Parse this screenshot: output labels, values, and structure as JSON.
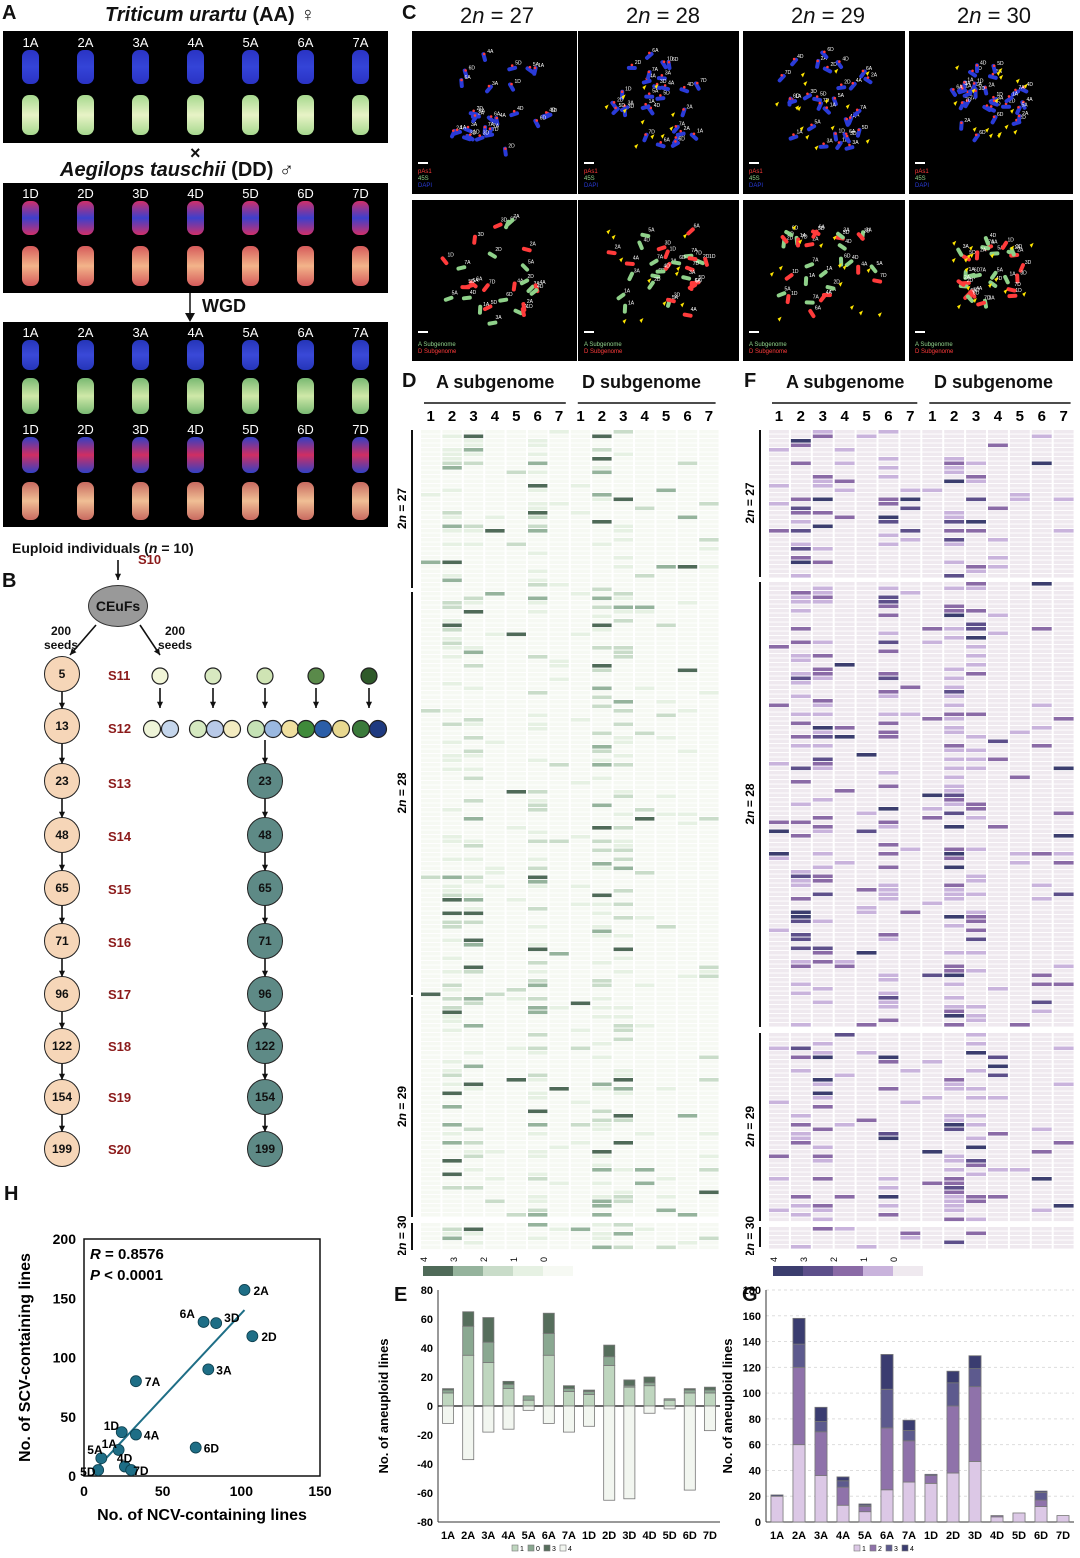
{
  "panel_labels": {
    "A": "A",
    "B": "B",
    "C": "C",
    "D": "D",
    "E": "E",
    "F": "F",
    "G": "G",
    "H": "H"
  },
  "panelA": {
    "species1": {
      "name": "Triticum urartu",
      "genome": "(AA)",
      "sex": "♀"
    },
    "cross": "×",
    "species2": {
      "name": "Aegilops tauschii",
      "genome": "(DD)",
      "sex": "♂"
    },
    "wgd": "WGD",
    "a_chromosomes": [
      "1A",
      "2A",
      "3A",
      "4A",
      "5A",
      "6A",
      "7A"
    ],
    "d_chromosomes": [
      "1D",
      "2D",
      "3D",
      "4D",
      "5D",
      "6D",
      "7D"
    ]
  },
  "panelB": {
    "title": "Euploid individuals",
    "n_label": "n",
    "n_value": "= 10)",
    "ceufs": "CEuFs",
    "seeds_left": "200\nseeds",
    "seeds_right": "200\nseeds",
    "left_counts": [
      "5",
      "13",
      "23",
      "48",
      "65",
      "71",
      "96",
      "122",
      "154",
      "199"
    ],
    "right_counts": [
      "23",
      "48",
      "65",
      "71",
      "96",
      "122",
      "154",
      "199"
    ],
    "generations": [
      "S10",
      "S11",
      "S12",
      "S13",
      "S14",
      "S15",
      "S16",
      "S17",
      "S18",
      "S19",
      "S20"
    ]
  },
  "panelC": {
    "columns": [
      "2n = 27",
      "2n = 28",
      "2n = 29",
      "2n = 30"
    ],
    "top_legend": [
      "pAs1",
      "45S",
      "DAPI"
    ],
    "bottom_legend": [
      "A Subgenome",
      "D Subgenome"
    ],
    "colors": {
      "a_green": "#8fd18a",
      "d_red": "#ff3b3b",
      "dapi": "#2a3bd8",
      "yellow": "#ffe600"
    }
  },
  "panelD": {
    "a_title": "A subgenome",
    "d_title": "D subgenome",
    "numbers": [
      "1",
      "2",
      "3",
      "4",
      "5",
      "6",
      "7"
    ],
    "rows": [
      "2n = 27",
      "2n = 28",
      "2n = 29",
      "2n = 30"
    ],
    "legend": [
      "4",
      "3",
      "2",
      "1",
      "0"
    ],
    "colors": [
      "#4f6a58",
      "#95b39c",
      "#c9dcc9",
      "#e6f1e3",
      "#f6f9f3"
    ]
  },
  "panelF": {
    "a_title": "A subgenome",
    "d_title": "D subgenome",
    "numbers": [
      "1",
      "2",
      "3",
      "4",
      "5",
      "6",
      "7"
    ],
    "rows": [
      "2n = 27",
      "2n = 28",
      "2n = 29",
      "2n = 30"
    ],
    "legend": [
      "4",
      "3",
      "2",
      "1",
      "0"
    ],
    "colors": [
      "#3b3d6e",
      "#5d4f8a",
      "#8a6aa6",
      "#c9b3dc",
      "#efe9ef"
    ]
  },
  "chart_data": [
    {
      "panel": "E",
      "type": "bar",
      "ylabel": "No. of aneuploid lines",
      "ylim": [
        -80,
        80
      ],
      "yticks": [
        -80,
        -60,
        -40,
        -20,
        0,
        20,
        40,
        60,
        80
      ],
      "categories": [
        "1A",
        "2A",
        "3A",
        "4A",
        "5A",
        "6A",
        "7A",
        "1D",
        "2D",
        "3D",
        "4D",
        "5D",
        "6D",
        "7D"
      ],
      "legend": [
        "1",
        "0",
        "3",
        "4"
      ],
      "series": [
        {
          "name": "1",
          "values": [
            9,
            35,
            30,
            12,
            4,
            35,
            10,
            8,
            28,
            13,
            14,
            4,
            9,
            9
          ]
        },
        {
          "name": "3",
          "values": [
            2,
            20,
            14,
            3,
            3,
            15,
            2,
            2,
            6,
            1,
            2,
            1,
            2,
            2
          ]
        },
        {
          "name": "4",
          "values": [
            1,
            10,
            17,
            2,
            0,
            14,
            2,
            1,
            8,
            4,
            4,
            0,
            1,
            2
          ]
        },
        {
          "name": "0",
          "values": [
            -12,
            -37,
            -18,
            -16,
            -3,
            -12,
            -18,
            -14,
            -65,
            -64,
            -5,
            -2,
            -58,
            -17
          ]
        }
      ]
    },
    {
      "panel": "G",
      "type": "bar",
      "ylabel": "No. of aneuploid lines",
      "ylim": [
        0,
        180
      ],
      "yticks": [
        0,
        20,
        40,
        60,
        80,
        100,
        120,
        140,
        160,
        180
      ],
      "categories": [
        "1A",
        "2A",
        "3A",
        "4A",
        "5A",
        "6A",
        "7A",
        "1D",
        "2D",
        "3D",
        "4D",
        "5D",
        "6D",
        "7D"
      ],
      "legend": [
        "1",
        "2",
        "3",
        "4"
      ],
      "series": [
        {
          "name": "1",
          "values": [
            20,
            60,
            36,
            13,
            8,
            25,
            31,
            30,
            38,
            47,
            4,
            7,
            12,
            5
          ]
        },
        {
          "name": "2",
          "values": [
            0,
            60,
            34,
            14,
            4,
            48,
            32,
            6,
            52,
            58,
            1,
            0,
            5,
            0
          ]
        },
        {
          "name": "3",
          "values": [
            0,
            18,
            8,
            5,
            1,
            30,
            8,
            1,
            18,
            14,
            0,
            0,
            6,
            0
          ]
        },
        {
          "name": "4",
          "values": [
            1,
            20,
            11,
            3,
            1,
            27,
            8,
            0,
            9,
            10,
            0,
            0,
            1,
            0
          ]
        }
      ]
    },
    {
      "panel": "H",
      "type": "scatter",
      "xlabel": "No. of NCV-containing lines",
      "ylabel": "No. of SCV-containing lines",
      "xlim": [
        0,
        150
      ],
      "ylim": [
        0,
        200
      ],
      "xticks": [
        0,
        50,
        100,
        150
      ],
      "yticks": [
        0,
        50,
        100,
        150,
        200
      ],
      "annotation_R": "R",
      "annotation_R_value": "= 0.8576",
      "annotation_P": "P",
      "annotation_P_value": "< 0.0001",
      "points": [
        {
          "label": "2A",
          "x": 102,
          "y": 157
        },
        {
          "label": "6A",
          "x": 76,
          "y": 130
        },
        {
          "label": "3D",
          "x": 84,
          "y": 129
        },
        {
          "label": "2D",
          "x": 107,
          "y": 118
        },
        {
          "label": "3A",
          "x": 79,
          "y": 90
        },
        {
          "label": "7A",
          "x": 33,
          "y": 80
        },
        {
          "label": "6D",
          "x": 71,
          "y": 24
        },
        {
          "label": "4A",
          "x": 33,
          "y": 35
        },
        {
          "label": "1D",
          "x": 24,
          "y": 37
        },
        {
          "label": "1A",
          "x": 22,
          "y": 22
        },
        {
          "label": "5A",
          "x": 11,
          "y": 15
        },
        {
          "label": "4D",
          "x": 26,
          "y": 8
        },
        {
          "label": "5D",
          "x": 9,
          "y": 5
        },
        {
          "label": "7D",
          "x": 30,
          "y": 5
        }
      ],
      "fit": {
        "x": [
          7,
          102
        ],
        "y": [
          5,
          140
        ]
      },
      "point_color": "#1e6e86"
    }
  ]
}
